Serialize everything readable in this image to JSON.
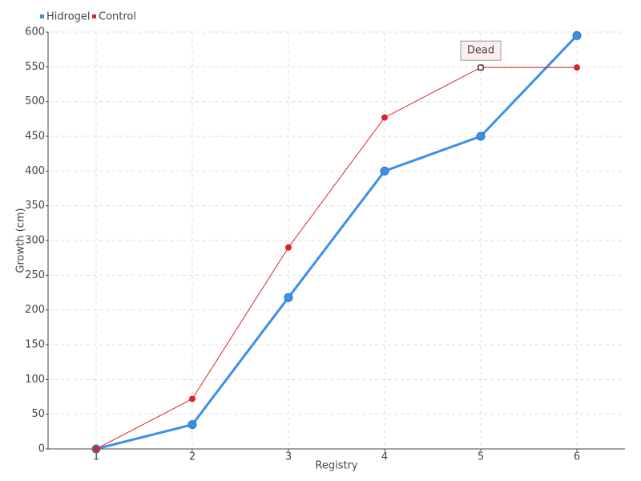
{
  "chart_data": {
    "type": "line",
    "x_label": "Registry",
    "y_label": "Growth (cm)",
    "x": [
      1,
      2,
      3,
      4,
      5,
      6
    ],
    "xlim": [
      0.5,
      6.5
    ],
    "xticks": [
      1,
      2,
      3,
      4,
      5,
      6
    ],
    "ylim": [
      0,
      600
    ],
    "yticks": [
      0,
      50,
      100,
      150,
      200,
      250,
      300,
      350,
      400,
      450,
      500,
      550,
      600
    ],
    "grid": true,
    "legend": "top-left",
    "series": [
      {
        "name": "Hidrogel",
        "color": "#3d8fe8",
        "values": [
          0,
          35,
          218,
          400,
          450,
          595
        ]
      },
      {
        "name": "Control",
        "color": "#e0202a",
        "values": [
          0,
          72,
          290,
          477,
          549,
          549
        ]
      }
    ],
    "annotations": [
      {
        "text": "Dead",
        "x": 5,
        "y": 549
      }
    ]
  }
}
